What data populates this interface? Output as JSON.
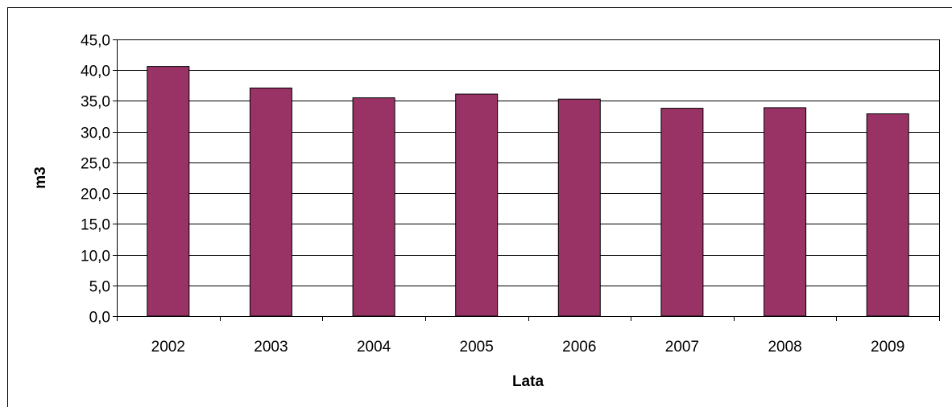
{
  "chart_data": {
    "type": "bar",
    "title": "",
    "xlabel": "Lata",
    "ylabel": "m3",
    "categories": [
      "2002",
      "2003",
      "2004",
      "2005",
      "2006",
      "2007",
      "2008",
      "2009"
    ],
    "values": [
      40.6,
      37.1,
      35.5,
      36.1,
      35.3,
      33.8,
      33.9,
      32.9
    ],
    "ylim": [
      0,
      45
    ],
    "ytick_step": 5,
    "ytick_labels": [
      "0,0",
      "5,0",
      "10,0",
      "15,0",
      "20,0",
      "25,0",
      "30,0",
      "35,0",
      "40,0",
      "45,0"
    ],
    "grid": true,
    "legend": "none",
    "bar_color": "#993366"
  }
}
